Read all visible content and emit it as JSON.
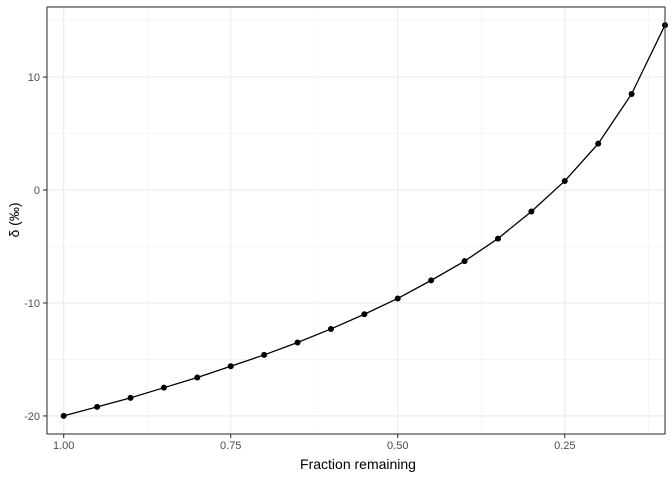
{
  "chart_data": {
    "type": "line",
    "title": "",
    "xlabel": "Fraction remaining",
    "ylabel": "δ (‰)",
    "x_reversed": true,
    "xlim": [
      0.1,
      1.025
    ],
    "ylim": [
      -21.6,
      16.2
    ],
    "x_ticks": [
      {
        "value": 1.0,
        "label": "1.00"
      },
      {
        "value": 0.75,
        "label": "0.75"
      },
      {
        "value": 0.5,
        "label": "0.50"
      },
      {
        "value": 0.25,
        "label": "0.25"
      }
    ],
    "x_minor_ticks": [
      0.875,
      0.625,
      0.375,
      0.125
    ],
    "y_ticks": [
      {
        "value": -20,
        "label": "-20"
      },
      {
        "value": -10,
        "label": "-10"
      },
      {
        "value": 0,
        "label": "0"
      },
      {
        "value": 10,
        "label": "10"
      }
    ],
    "y_minor_ticks": [
      -15,
      -5,
      5,
      15
    ],
    "grid": true,
    "theme": "bw",
    "series": [
      {
        "color": "#000000",
        "points": [
          {
            "x": 1.0,
            "y": -20.0
          },
          {
            "x": 0.95,
            "y": -19.2
          },
          {
            "x": 0.9,
            "y": -18.4
          },
          {
            "x": 0.85,
            "y": -17.5
          },
          {
            "x": 0.8,
            "y": -16.6
          },
          {
            "x": 0.75,
            "y": -15.6
          },
          {
            "x": 0.7,
            "y": -14.6
          },
          {
            "x": 0.65,
            "y": -13.5
          },
          {
            "x": 0.6,
            "y": -12.3
          },
          {
            "x": 0.55,
            "y": -11.0
          },
          {
            "x": 0.5,
            "y": -9.6
          },
          {
            "x": 0.45,
            "y": -8.0
          },
          {
            "x": 0.4,
            "y": -6.3
          },
          {
            "x": 0.35,
            "y": -4.3
          },
          {
            "x": 0.3,
            "y": -1.9
          },
          {
            "x": 0.25,
            "y": 0.8
          },
          {
            "x": 0.2,
            "y": 4.1
          },
          {
            "x": 0.15,
            "y": 8.5
          },
          {
            "x": 0.1,
            "y": 14.6
          }
        ]
      }
    ]
  }
}
